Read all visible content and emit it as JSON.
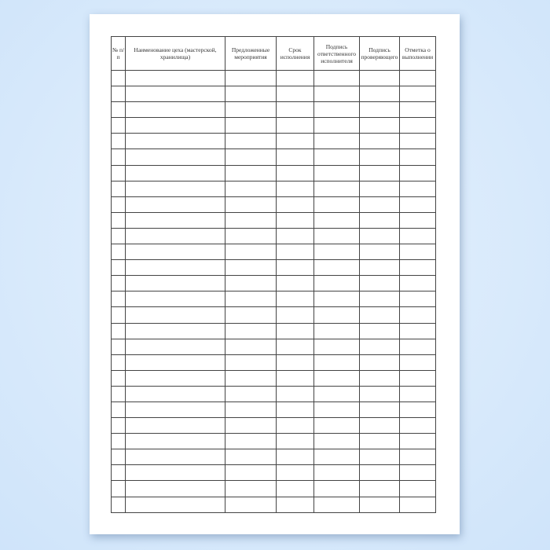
{
  "document": {
    "columns": [
      "№ п/п",
      "Наименование цеха (мастерской, хранилища)",
      "Предложенные мероприятия",
      "Срок исполнения",
      "Подпись ответственного исполнителя",
      "Подпись проверяющего",
      "Отметка о выполнении"
    ],
    "empty_row_count": 28
  }
}
